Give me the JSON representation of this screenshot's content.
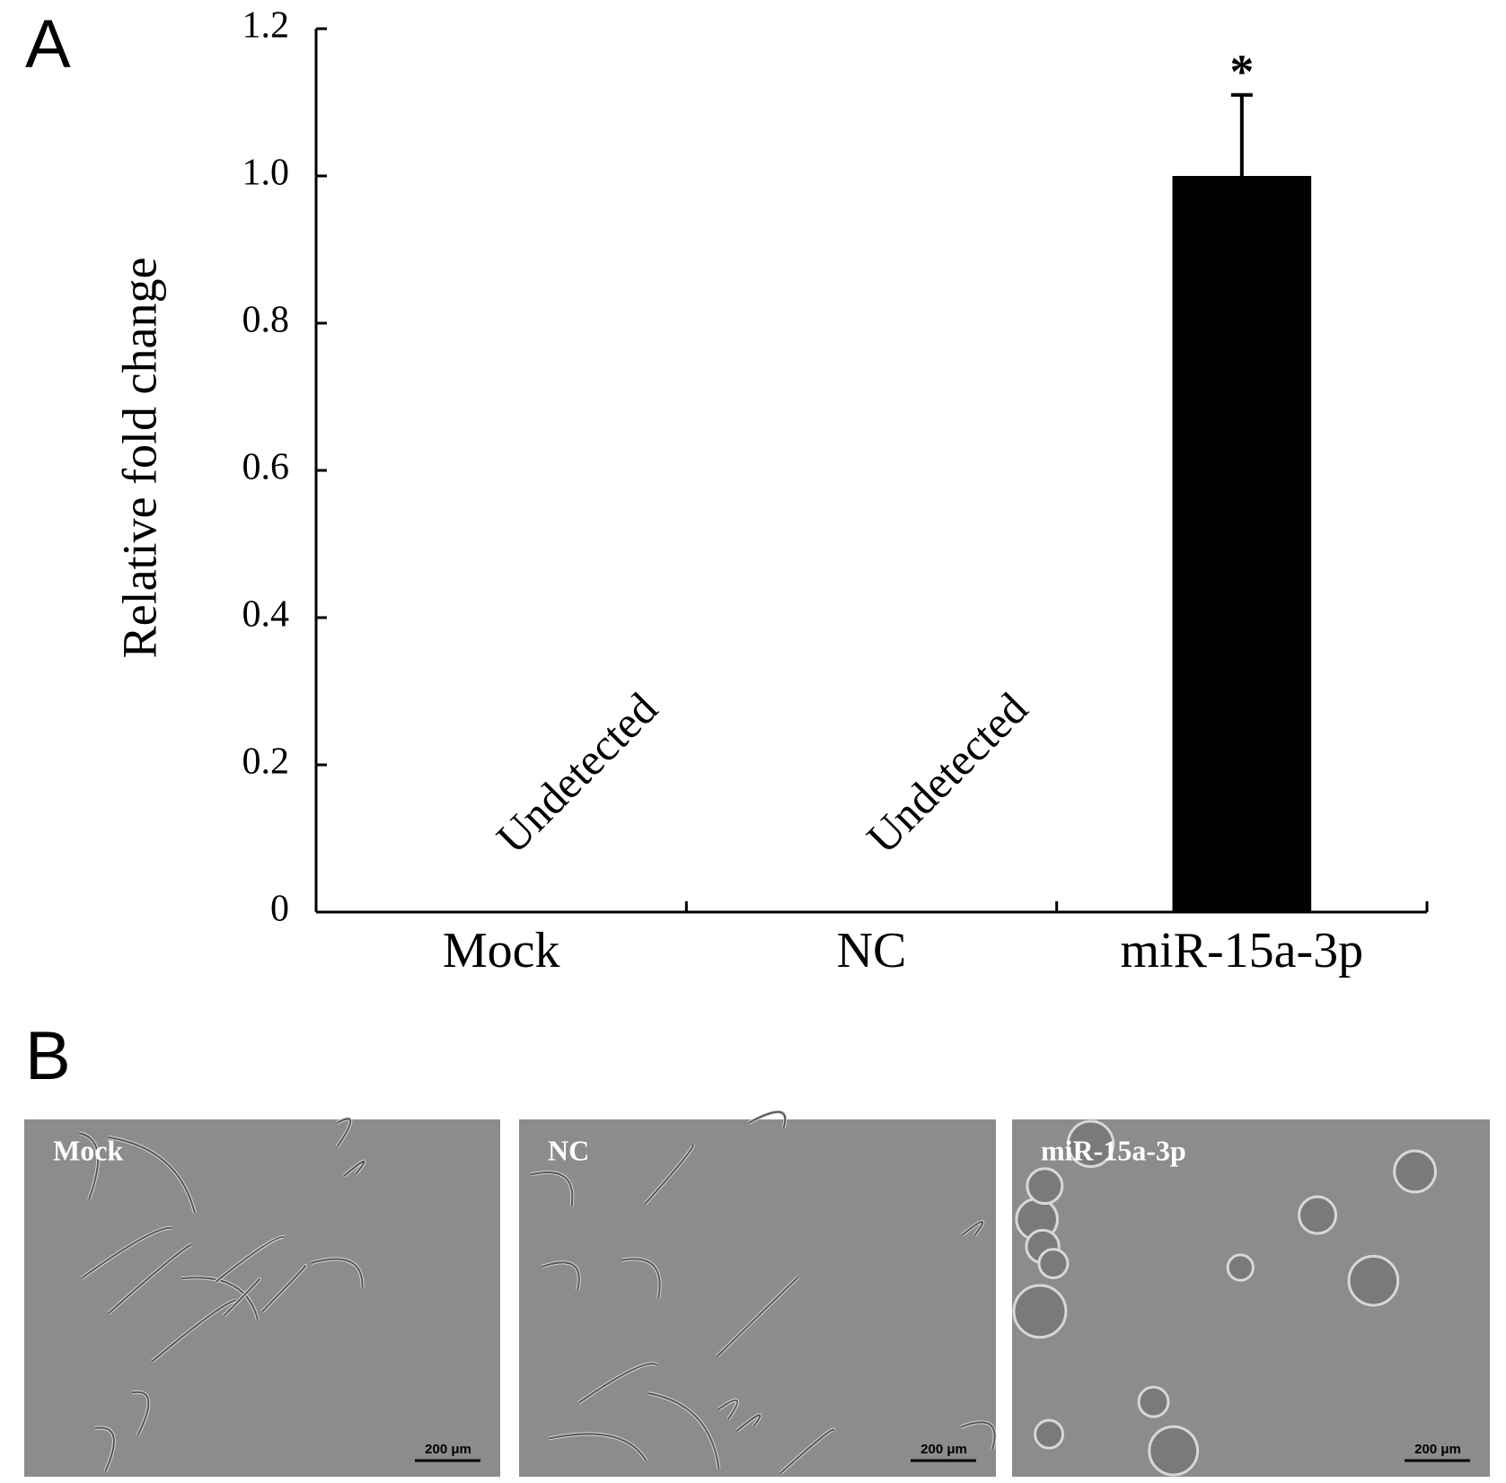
{
  "panels": {
    "a": "A",
    "b": "B"
  },
  "chart_data": {
    "type": "bar",
    "y_label": "Relative fold change",
    "categories": [
      "Mock",
      "NC",
      "miR-15a-3p"
    ],
    "values": [
      null,
      null,
      1.0
    ],
    "errors": [
      null,
      null,
      0.11
    ],
    "annotations": [
      "Undetected",
      "Undetected",
      "*"
    ],
    "color": "#000000",
    "ylim": [
      0,
      1.2
    ],
    "yticks": [
      0,
      0.2,
      0.4,
      0.6,
      0.8,
      {
        "value": 1,
        "label": "1.0"
      },
      1.2
    ]
  },
  "images": [
    {
      "label": "Mock",
      "scale_bar": "200 μm"
    },
    {
      "label": "NC",
      "scale_bar": "200 μm"
    },
    {
      "label": "miR-15a-3p",
      "scale_bar": "200 μm"
    }
  ]
}
